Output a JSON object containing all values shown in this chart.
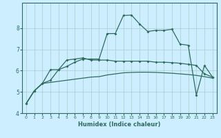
{
  "title": "",
  "xlabel": "Humidex (Indice chaleur)",
  "bg_color": "#cceeff",
  "grid_color": "#aacccc",
  "line_color": "#2e6b5e",
  "xlim": [
    -0.5,
    23.5
  ],
  "ylim": [
    4.0,
    9.2
  ],
  "yticks": [
    4,
    5,
    6,
    7,
    8
  ],
  "xticks": [
    0,
    1,
    2,
    3,
    4,
    5,
    6,
    7,
    8,
    9,
    10,
    11,
    12,
    13,
    14,
    15,
    16,
    17,
    18,
    19,
    20,
    21,
    22,
    23
  ],
  "line1_x": [
    0,
    1,
    2,
    3,
    4,
    5,
    6,
    7,
    8,
    9,
    10,
    11,
    12,
    13,
    14,
    15,
    16,
    17,
    18,
    19,
    20,
    21,
    22,
    23
  ],
  "line1_y": [
    4.45,
    5.05,
    5.4,
    5.45,
    5.5,
    5.55,
    5.6,
    5.65,
    5.7,
    5.72,
    5.8,
    5.85,
    5.9,
    5.92,
    5.93,
    5.93,
    5.92,
    5.9,
    5.88,
    5.85,
    5.82,
    5.78,
    5.72,
    5.65
  ],
  "line2_x": [
    0,
    1,
    2,
    3,
    4,
    5,
    6,
    7,
    8,
    9,
    10,
    11,
    12,
    13,
    14,
    15,
    16,
    17,
    18,
    19,
    20,
    21,
    22,
    23
  ],
  "line2_y": [
    4.45,
    5.05,
    5.4,
    5.55,
    6.05,
    6.2,
    6.4,
    6.55,
    6.55,
    6.55,
    7.75,
    7.75,
    8.6,
    8.62,
    8.2,
    7.85,
    7.9,
    7.9,
    7.95,
    7.25,
    7.2,
    4.85,
    6.25,
    5.7
  ],
  "line3_x": [
    0,
    1,
    2,
    3,
    4,
    5,
    6,
    7,
    8,
    9,
    10,
    11,
    12,
    13,
    14,
    15,
    16,
    17,
    18,
    19,
    20,
    21,
    22,
    23
  ],
  "line3_y": [
    4.45,
    5.05,
    5.4,
    6.05,
    6.05,
    6.5,
    6.55,
    6.6,
    6.5,
    6.5,
    6.5,
    6.45,
    6.45,
    6.45,
    6.45,
    6.45,
    6.4,
    6.4,
    6.38,
    6.35,
    6.3,
    6.25,
    5.85,
    5.7
  ]
}
